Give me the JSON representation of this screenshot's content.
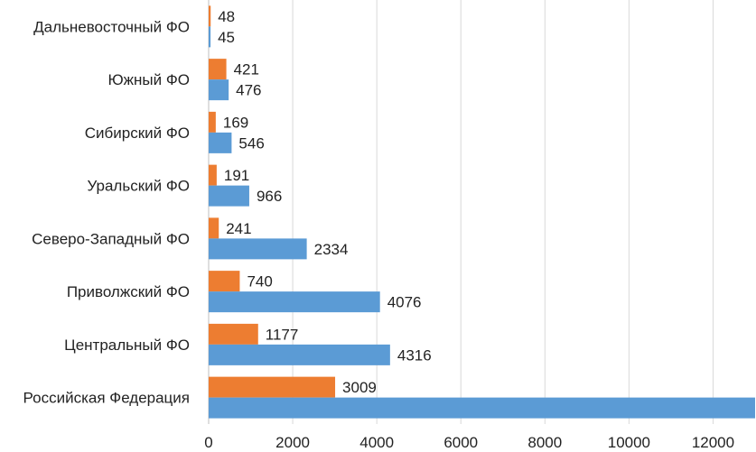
{
  "chart_data": {
    "type": "bar",
    "orientation": "horizontal",
    "title": "",
    "xlabel": "",
    "ylabel": "",
    "categories": [
      "Российская Федерация",
      "Центральный ФО",
      "Приволжский ФО",
      "Северо-Западный ФО",
      "Уральский ФО",
      "Сибирский ФО",
      "Южный ФО",
      "Дальневосточный ФО"
    ],
    "series": [
      {
        "color": "#5b9bd5",
        "values": [
          13000,
          4316,
          4076,
          2334,
          966,
          546,
          476,
          45
        ]
      },
      {
        "color": "#ed7d31",
        "values": [
          3009,
          1177,
          740,
          241,
          191,
          169,
          421,
          48
        ]
      }
    ],
    "data_labels": [
      [
        "",
        "4316",
        "4076",
        "2334",
        "966",
        "546",
        "476",
        "45"
      ],
      [
        "3009",
        "1177",
        "740",
        "241",
        "191",
        "169",
        "421",
        "48"
      ]
    ],
    "xlim": [
      0,
      13000
    ],
    "xticks": [
      0,
      2000,
      4000,
      6000,
      8000,
      10000,
      12000
    ],
    "xtick_labels": [
      "0",
      "2000",
      "4000",
      "6000",
      "8000",
      "10000",
      "12000"
    ],
    "grid": true,
    "legend": "none"
  }
}
